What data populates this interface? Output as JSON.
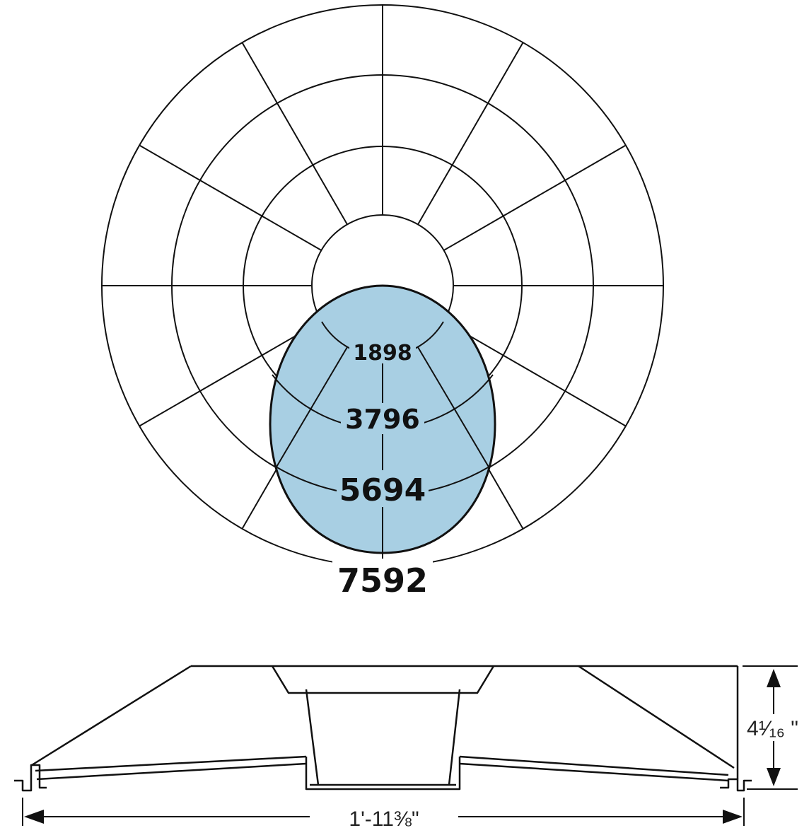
{
  "photometric": {
    "ring_values": [
      "1898",
      "3796",
      "5694",
      "7592"
    ],
    "max_candela": 7592,
    "distribution_fill": "#a8cfe3",
    "line_color": "#111111"
  },
  "fixture": {
    "height_label": "4¹⁄₁₆ \"",
    "width_label": "1'-11⅜\""
  }
}
